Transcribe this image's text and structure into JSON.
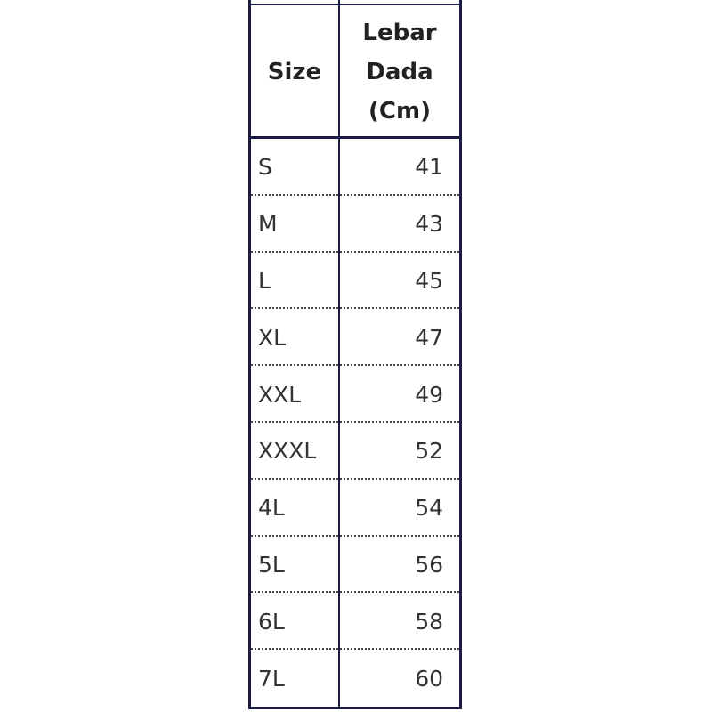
{
  "table": {
    "header": [
      "Size",
      "Lebar Dada (Cm)"
    ],
    "rows": [
      [
        "S",
        41
      ],
      [
        "M",
        43
      ],
      [
        "L",
        45
      ],
      [
        "XL",
        47
      ],
      [
        "XXL",
        49
      ],
      [
        "XXXL",
        52
      ],
      [
        "4L",
        54
      ],
      [
        "5L",
        56
      ],
      [
        "6L",
        58
      ],
      [
        "7L",
        60
      ]
    ]
  }
}
